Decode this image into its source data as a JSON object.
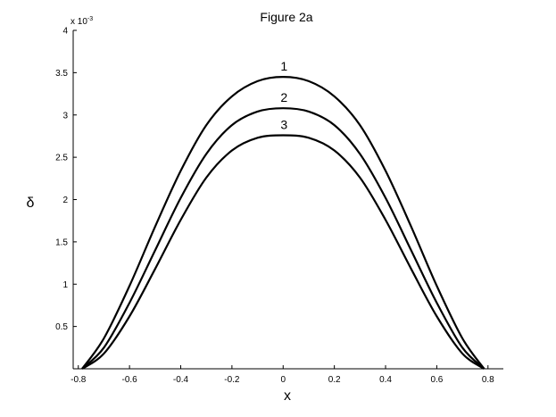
{
  "chart_data": {
    "type": "line",
    "title": "Figure 2a",
    "xlabel": "x",
    "ylabel": "δ",
    "y_exponent_label": "x 10",
    "y_exponent_power": "-3",
    "xlim": [
      -0.82,
      0.86
    ],
    "ylim": [
      0,
      4
    ],
    "x_ticks": [
      -0.8,
      -0.6,
      -0.4,
      -0.2,
      0,
      0.2,
      0.4,
      0.6,
      0.8
    ],
    "x_tick_labels": [
      "-0.8",
      "-0.6",
      "-0.4",
      "-0.2",
      "0",
      "0.2",
      "0.4",
      "0.6",
      "0.8"
    ],
    "y_ticks": [
      0.5,
      1,
      1.5,
      2,
      2.5,
      3,
      3.5,
      4
    ],
    "y_tick_labels": [
      "0.5",
      "1",
      "1.5",
      "2",
      "2.5",
      "3",
      "3.5",
      "4"
    ],
    "grid": false,
    "line_color": "#000000",
    "series": [
      {
        "name": "1",
        "x": [
          -0.785,
          -0.7,
          -0.6,
          -0.5,
          -0.4,
          -0.3,
          -0.2,
          -0.1,
          0,
          0.1,
          0.2,
          0.3,
          0.4,
          0.5,
          0.6,
          0.7,
          0.785
        ],
        "y": [
          0,
          0.36,
          0.98,
          1.68,
          2.34,
          2.88,
          3.22,
          3.4,
          3.45,
          3.4,
          3.22,
          2.88,
          2.34,
          1.68,
          0.98,
          0.36,
          0
        ]
      },
      {
        "name": "2",
        "x": [
          -0.785,
          -0.7,
          -0.6,
          -0.5,
          -0.4,
          -0.3,
          -0.2,
          -0.1,
          0,
          0.1,
          0.2,
          0.3,
          0.4,
          0.5,
          0.6,
          0.7,
          0.785
        ],
        "y": [
          0,
          0.25,
          0.78,
          1.4,
          2.02,
          2.54,
          2.88,
          3.04,
          3.08,
          3.04,
          2.88,
          2.54,
          2.02,
          1.4,
          0.78,
          0.25,
          0
        ]
      },
      {
        "name": "3",
        "x": [
          -0.785,
          -0.7,
          -0.6,
          -0.5,
          -0.4,
          -0.3,
          -0.2,
          -0.1,
          0,
          0.1,
          0.2,
          0.3,
          0.4,
          0.5,
          0.6,
          0.7,
          0.785
        ],
        "y": [
          0,
          0.18,
          0.62,
          1.18,
          1.76,
          2.26,
          2.58,
          2.73,
          2.76,
          2.73,
          2.58,
          2.26,
          1.76,
          1.18,
          0.62,
          0.18,
          0
        ]
      }
    ]
  }
}
